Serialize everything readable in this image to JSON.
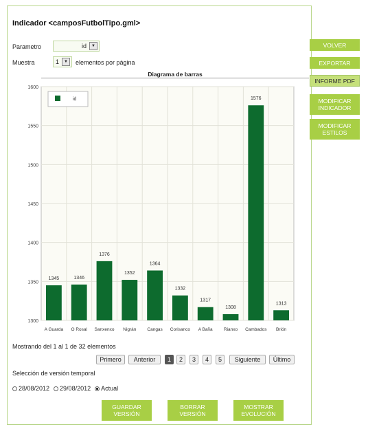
{
  "header": {
    "title": "Indicador <camposFutbolTipo.gml>"
  },
  "controls": {
    "param_label": "Parametro",
    "param_value": "id",
    "muestra_label": "Muestra",
    "muestra_value": "1",
    "per_page_label": "elementos por página"
  },
  "side_buttons": [
    {
      "label": "VOLVER"
    },
    {
      "label": "EXPORTAR"
    },
    {
      "label": "INFORME PDF"
    },
    {
      "label": "MODIFICAR INDICADOR"
    },
    {
      "label": "MODIFICAR ESTILOS"
    }
  ],
  "chart_data": {
    "type": "bar",
    "title": "Diagrama de barras",
    "categories": [
      "A Guarda",
      "O Rosal",
      "Sanxenxo",
      "Nigrán",
      "Cangas",
      "Corisanco",
      "A Baña",
      "Rianxo",
      "Cambados",
      "Brión"
    ],
    "series": [
      {
        "name": "id",
        "values": [
          1345,
          1346,
          1376,
          1352,
          1364,
          1332,
          1317,
          1308,
          1576,
          1313
        ]
      }
    ],
    "ylim": [
      1300,
      1600
    ],
    "yticks": [
      1300,
      1350,
      1400,
      1450,
      1500,
      1550,
      1600
    ],
    "bar_color": "#0d6b2e",
    "grid": true,
    "legend": "top-left"
  },
  "pagination": {
    "info": "Mostrando del 1 al 1 de 32 elementos",
    "first": "Primero",
    "prev": "Anterior",
    "pages": [
      "1",
      "2",
      "3",
      "4",
      "5"
    ],
    "next": "Siguiente",
    "last": "Último"
  },
  "versions": {
    "label": "Selección de versión temporal",
    "options": [
      "28/08/2012",
      "29/08/2012",
      "Actual"
    ],
    "selected": "Actual"
  },
  "bottom_buttons": [
    {
      "label": "GUARDAR VERSIÓN"
    },
    {
      "label": "BORRAR VERSIÓN"
    },
    {
      "label": "MOSTRAR EVOLUCIÓN"
    }
  ],
  "colors": {
    "accent": "#a8cf45",
    "bar": "#0d6b2e"
  }
}
